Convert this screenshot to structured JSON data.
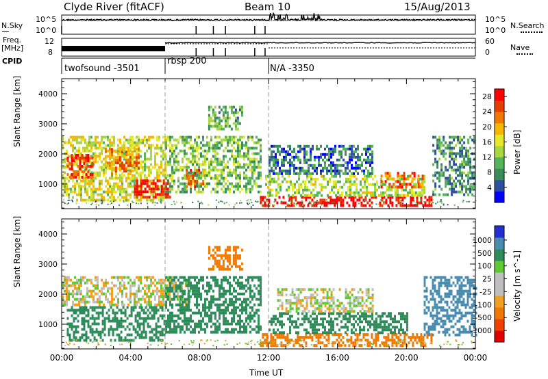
{
  "header": {
    "station": "Clyde River (fitACF)",
    "beam": "Beam 10",
    "date": "15/Aug/2013"
  },
  "noise_panel": {
    "left_label": "N.Sky",
    "right_label": "N.Search",
    "left_ticks": [
      "10^5",
      "10^0"
    ],
    "right_ticks": [
      "10^5",
      "10^0"
    ]
  },
  "freq_panel": {
    "left_label_line1": "Freq.",
    "left_label_line2": "[MHz]",
    "left_ticks": [
      "12",
      "8"
    ],
    "right_label": "Nave",
    "right_ticks": [
      "60",
      "0"
    ]
  },
  "cpid": {
    "label": "CPID",
    "segments": [
      {
        "name": "twofsound -3501",
        "start_hour": 0
      },
      {
        "name": "rbsp 200",
        "start_hour": 6
      },
      {
        "name": "N/A -3350",
        "start_hour": 12
      }
    ]
  },
  "time_axis": {
    "label": "Time UT",
    "ticks": [
      "00:00",
      "04:00",
      "08:00",
      "12:00",
      "16:00",
      "20:00",
      "00:00"
    ],
    "range_hours": [
      0,
      24
    ]
  },
  "colors": {
    "power": [
      "#0000ff",
      "#2e4fa0",
      "#3a8c5a",
      "#55b45a",
      "#a8d83c",
      "#e8e82a",
      "#f5b800",
      "#f07800",
      "#e83c00",
      "#ff0000"
    ],
    "velocity": [
      "#e00000",
      "#f04000",
      "#f07800",
      "#f0a020",
      "#c0c0c0",
      "#c0c0c0",
      "#60c830",
      "#2e8c5a",
      "#4a8cb0",
      "#2030d0"
    ]
  },
  "chart_data": [
    {
      "type": "heatmap",
      "quantity": "Power",
      "ylabel": "Slant Range [km]",
      "xlabel": "Time UT",
      "ylim": [
        180,
        4500
      ],
      "xlim_hours": [
        0,
        24
      ],
      "yticks": [
        1000,
        2000,
        3000,
        4000
      ],
      "colorbar": {
        "label": "Power [dB]",
        "range": [
          0,
          30
        ],
        "ticks": [
          "4",
          "8",
          "12",
          "16",
          "20",
          "24",
          "28"
        ]
      },
      "regions": [
        {
          "t0": 0.0,
          "t1": 6.0,
          "r0": 500,
          "r1": 2600,
          "value": 16
        },
        {
          "t0": 0.3,
          "t1": 1.8,
          "r0": 1200,
          "r1": 2000,
          "value": 26
        },
        {
          "t0": 4.2,
          "t1": 6.3,
          "r0": 550,
          "r1": 1150,
          "value": 29
        },
        {
          "t0": 2.5,
          "t1": 4.5,
          "r0": 1300,
          "r1": 2200,
          "value": 22
        },
        {
          "t0": 6.0,
          "t1": 11.5,
          "r0": 700,
          "r1": 2600,
          "value": 12
        },
        {
          "t0": 7.2,
          "t1": 8.2,
          "r0": 900,
          "r1": 1500,
          "value": 24
        },
        {
          "t0": 8.5,
          "t1": 10.5,
          "r0": 2800,
          "r1": 3600,
          "value": 10
        },
        {
          "t0": 11.5,
          "t1": 21.5,
          "r0": 250,
          "r1": 600,
          "value": 29
        },
        {
          "t0": 11.8,
          "t1": 21.0,
          "r0": 600,
          "r1": 1300,
          "value": 14
        },
        {
          "t0": 12.0,
          "t1": 18.0,
          "r0": 1300,
          "r1": 2300,
          "value": 6
        },
        {
          "t0": 18.5,
          "t1": 21.0,
          "r0": 900,
          "r1": 1400,
          "value": 24
        },
        {
          "t0": 21.5,
          "t1": 24.0,
          "r0": 600,
          "r1": 2600,
          "value": 8
        }
      ]
    },
    {
      "type": "heatmap",
      "quantity": "Velocity",
      "ylabel": "Slant Range [km]",
      "xlabel": "Time UT",
      "ylim": [
        180,
        4500
      ],
      "xlim_hours": [
        0,
        24
      ],
      "yticks": [
        1000,
        2000,
        3000,
        4000
      ],
      "colorbar": {
        "label": "Velocity [m s^-1]",
        "ticks": [
          "1000",
          "500",
          "100",
          "25",
          "-25",
          "-100",
          "-500",
          "-1000"
        ]
      },
      "regions": [
        {
          "t0": 0.0,
          "t1": 7.5,
          "r0": 1600,
          "r1": 2600,
          "value": 0
        },
        {
          "t0": 0.3,
          "t1": 6.0,
          "r0": 500,
          "r1": 1600,
          "value": 300
        },
        {
          "t0": 6.0,
          "t1": 11.5,
          "r0": 700,
          "r1": 2600,
          "value": 300
        },
        {
          "t0": 8.5,
          "t1": 10.5,
          "r0": 2800,
          "r1": 3600,
          "value": -200
        },
        {
          "t0": 11.5,
          "t1": 21.5,
          "r0": 250,
          "r1": 700,
          "value": -300
        },
        {
          "t0": 12.0,
          "t1": 20.0,
          "r0": 700,
          "r1": 1400,
          "value": 200
        },
        {
          "t0": 12.5,
          "t1": 18.0,
          "r0": 1400,
          "r1": 2200,
          "value": 0
        },
        {
          "t0": 21.0,
          "t1": 24.0,
          "r0": 600,
          "r1": 2600,
          "value": 800
        }
      ]
    }
  ],
  "noise_series": {
    "sky_level_frac": 0.75,
    "search_level_frac": 0.72,
    "burst_hours": [
      12,
      15
    ]
  },
  "freq_series": {
    "freq_level_frac": 0.25,
    "nave_level_frac": 0.2
  }
}
